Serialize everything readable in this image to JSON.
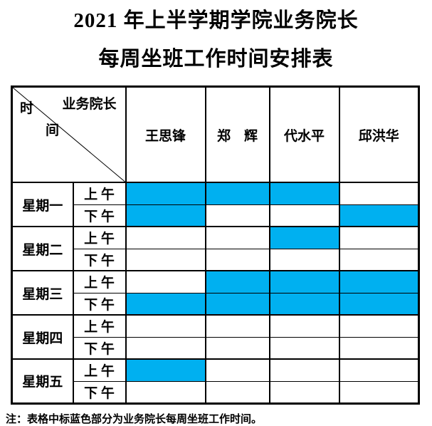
{
  "title": {
    "line1": "2021 年上半学期学院业务院长",
    "line2": "每周坐班工作时间安排表"
  },
  "table": {
    "corner": {
      "deans_label": "业务院长",
      "time_char_top": "时",
      "time_char_bottom": "间"
    },
    "deans": [
      "王思锋",
      "郑　辉",
      "代水平",
      "邱洪华"
    ],
    "highlight_color": "#00B0F0",
    "days": [
      {
        "label": "星期一",
        "sessions": [
          {
            "label": "上 午",
            "duty": [
              true,
              true,
              true,
              false
            ]
          },
          {
            "label": "下 午",
            "duty": [
              true,
              false,
              false,
              true
            ]
          }
        ]
      },
      {
        "label": "星期二",
        "sessions": [
          {
            "label": "上 午",
            "duty": [
              false,
              false,
              true,
              false
            ]
          },
          {
            "label": "下 午",
            "duty": [
              false,
              false,
              false,
              false
            ]
          }
        ]
      },
      {
        "label": "星期三",
        "sessions": [
          {
            "label": "上 午",
            "duty": [
              false,
              true,
              true,
              true
            ]
          },
          {
            "label": "下 午",
            "duty": [
              true,
              true,
              true,
              true
            ]
          }
        ]
      },
      {
        "label": "星期四",
        "sessions": [
          {
            "label": "上 午",
            "duty": [
              false,
              false,
              false,
              false
            ]
          },
          {
            "label": "下 午",
            "duty": [
              false,
              false,
              false,
              false
            ]
          }
        ]
      },
      {
        "label": "星期五",
        "sessions": [
          {
            "label": "上 午",
            "duty": [
              true,
              false,
              false,
              false
            ]
          },
          {
            "label": "下 午",
            "duty": [
              false,
              false,
              false,
              false
            ]
          }
        ]
      }
    ]
  },
  "note": "注：表格中标蓝色部分为业务院长每周坐班工作时间。"
}
